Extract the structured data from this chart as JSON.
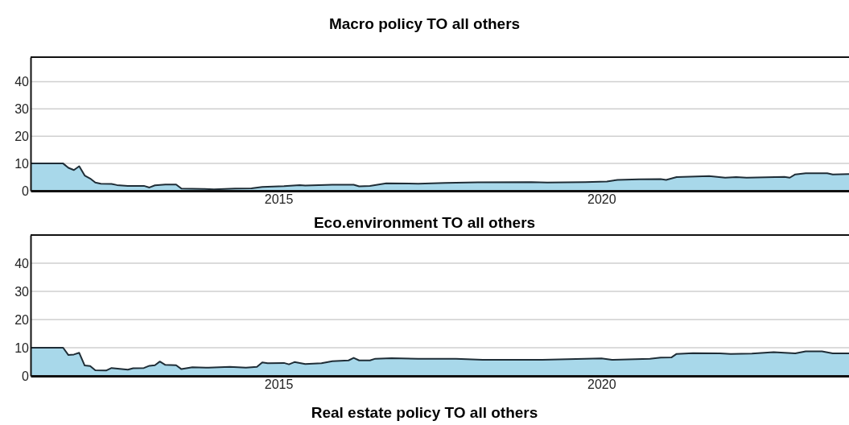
{
  "chart_data": [
    {
      "type": "area",
      "title": "Macro policy TO all others",
      "xlim": [
        "2011-03",
        "2023-11"
      ],
      "xticks": [
        {
          "value": "2015-01",
          "label": "2015"
        },
        {
          "value": "2020-01",
          "label": "2020"
        }
      ],
      "ylim": [
        0,
        49
      ],
      "yticks": [
        0,
        10,
        20,
        30,
        40
      ],
      "grid": "y",
      "x": [
        "2011-03",
        "2011-09",
        "2011-10",
        "2011-11",
        "2011-12",
        "2012-01",
        "2012-02",
        "2012-03",
        "2012-04",
        "2012-06",
        "2012-07",
        "2012-09",
        "2012-12",
        "2013-01",
        "2013-02",
        "2013-04",
        "2013-06",
        "2013-07",
        "2013-11",
        "2014-01",
        "2014-05",
        "2014-08",
        "2014-10",
        "2015-02",
        "2015-05",
        "2015-06",
        "2015-11",
        "2016-03",
        "2016-04",
        "2016-06",
        "2016-09",
        "2017-03",
        "2017-08",
        "2018-02",
        "2018-12",
        "2019-03",
        "2019-10",
        "2020-02",
        "2020-04",
        "2020-08",
        "2020-12",
        "2021-01",
        "2021-03",
        "2021-09",
        "2021-12",
        "2022-02",
        "2022-04",
        "2022-11",
        "2022-12",
        "2023-01",
        "2023-03",
        "2023-07",
        "2023-08",
        "2023-11"
      ],
      "series": [
        {
          "color": "#a8d8ea",
          "values": [
            10,
            10,
            8.4,
            7.6,
            9,
            5.6,
            4.5,
            3,
            2.6,
            2.5,
            2.1,
            1.8,
            1.8,
            1.2,
            2,
            2.3,
            2.3,
            0.8,
            0.7,
            0.5,
            0.8,
            0.9,
            1.4,
            1.7,
            2.1,
            1.9,
            2.2,
            2.2,
            1.6,
            1.8,
            2.7,
            2.6,
            2.9,
            3.1,
            3.2,
            3,
            3.2,
            3.4,
            4,
            4.2,
            4.3,
            4,
            5,
            5.4,
            4.8,
            5,
            4.8,
            5.1,
            4.8,
            6,
            6.4,
            6.4,
            6,
            6.1
          ]
        }
      ]
    },
    {
      "type": "area",
      "title": "Eco.environment TO all others",
      "xlim": [
        "2011-03",
        "2023-11"
      ],
      "xticks": [
        {
          "value": "2015-01",
          "label": "2015"
        },
        {
          "value": "2020-01",
          "label": "2020"
        }
      ],
      "ylim": [
        0,
        50
      ],
      "yticks": [
        0,
        10,
        20,
        30,
        40
      ],
      "grid": "y",
      "x": [
        "2011-03",
        "2011-09",
        "2011-10",
        "2011-11",
        "2011-12",
        "2012-01",
        "2012-02",
        "2012-03",
        "2012-05",
        "2012-06",
        "2012-09",
        "2012-10",
        "2012-12",
        "2013-01",
        "2013-02",
        "2013-03",
        "2013-04",
        "2013-06",
        "2013-07",
        "2013-09",
        "2013-12",
        "2014-04",
        "2014-07",
        "2014-09",
        "2014-10",
        "2014-11",
        "2015-02",
        "2015-03",
        "2015-04",
        "2015-06",
        "2015-09",
        "2015-11",
        "2016-02",
        "2016-03",
        "2016-04",
        "2016-06",
        "2016-07",
        "2016-10",
        "2017-03",
        "2017-10",
        "2018-03",
        "2019-02",
        "2020-01",
        "2020-03",
        "2020-10",
        "2020-12",
        "2021-02",
        "2021-03",
        "2021-06",
        "2021-11",
        "2022-01",
        "2022-05",
        "2022-09",
        "2022-11",
        "2023-01",
        "2023-03",
        "2023-06",
        "2023-08",
        "2023-11"
      ],
      "series": [
        {
          "color": "#a8d8ea",
          "values": [
            10,
            10,
            7.4,
            7.6,
            8.2,
            3.7,
            3.5,
            2,
            1.9,
            2.8,
            2.2,
            2.7,
            2.8,
            3.6,
            3.8,
            5.1,
            3.9,
            3.8,
            2.4,
            3.1,
            2.9,
            3.2,
            2.9,
            3.2,
            4.8,
            4.5,
            4.6,
            4.1,
            4.9,
            4.2,
            4.5,
            5.2,
            5.5,
            6.4,
            5.5,
            5.5,
            6.1,
            6.3,
            6.1,
            6.1,
            5.7,
            5.7,
            6.2,
            5.7,
            6.1,
            6.5,
            6.6,
            7.8,
            8.1,
            8,
            7.8,
            7.9,
            8.4,
            8.2,
            8,
            8.7,
            8.7,
            8,
            8
          ]
        }
      ]
    },
    {
      "type": "other",
      "title": "Real estate policy TO all others"
    }
  ]
}
